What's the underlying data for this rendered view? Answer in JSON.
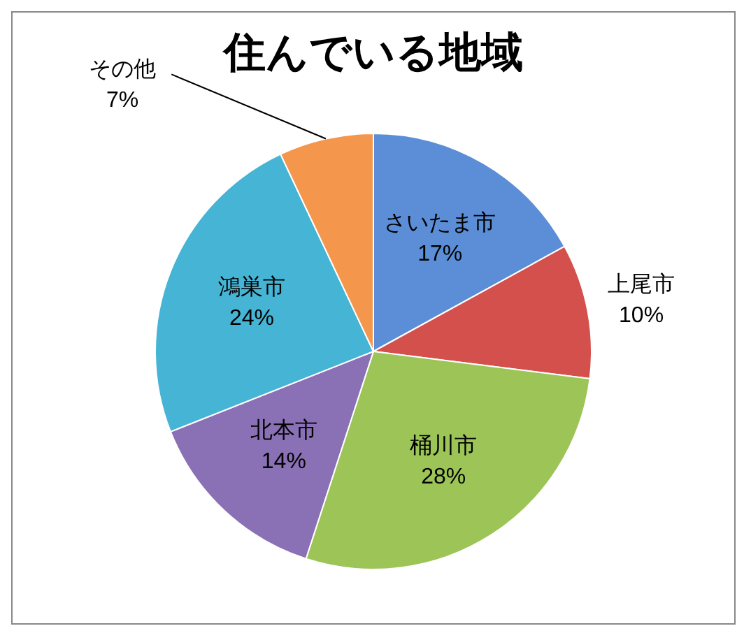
{
  "chart_data": {
    "type": "pie",
    "title": "住んでいる地域",
    "categories": [
      "さいたま市",
      "上尾市",
      "桶川市",
      "北本市",
      "鴻巣市",
      "その他"
    ],
    "values": [
      17,
      10,
      28,
      14,
      24,
      7
    ],
    "value_labels": [
      "17%",
      "10%",
      "28%",
      "14%",
      "24%",
      "7%"
    ],
    "colors": [
      "#5b8ed6",
      "#d4504c",
      "#9cc457",
      "#8a70b5",
      "#46b4d4",
      "#f5964d"
    ],
    "legend": false
  }
}
